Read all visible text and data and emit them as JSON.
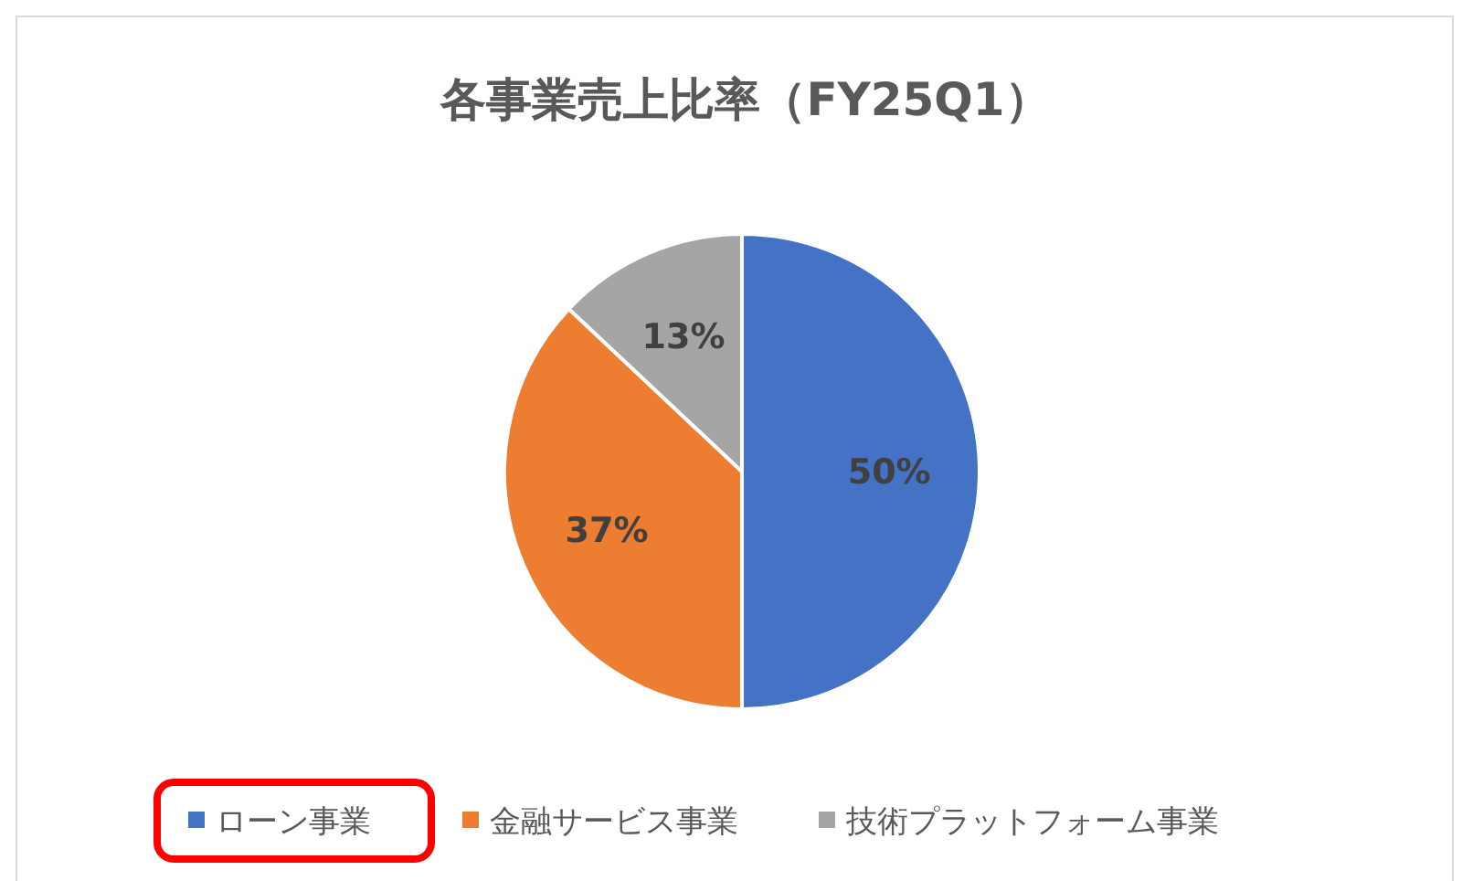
{
  "chart_data": {
    "type": "pie",
    "title": "各事業売上比率（FY25Q1）",
    "categories": [
      "ローン事業",
      "金融サービス事業",
      "技術プラットフォーム事業"
    ],
    "values": [
      50,
      37,
      13
    ],
    "colors": [
      "#4472c4",
      "#ed7d31",
      "#a5a5a5"
    ],
    "value_labels": [
      "50%",
      "37%",
      "13%"
    ],
    "legend": "bottom"
  }
}
